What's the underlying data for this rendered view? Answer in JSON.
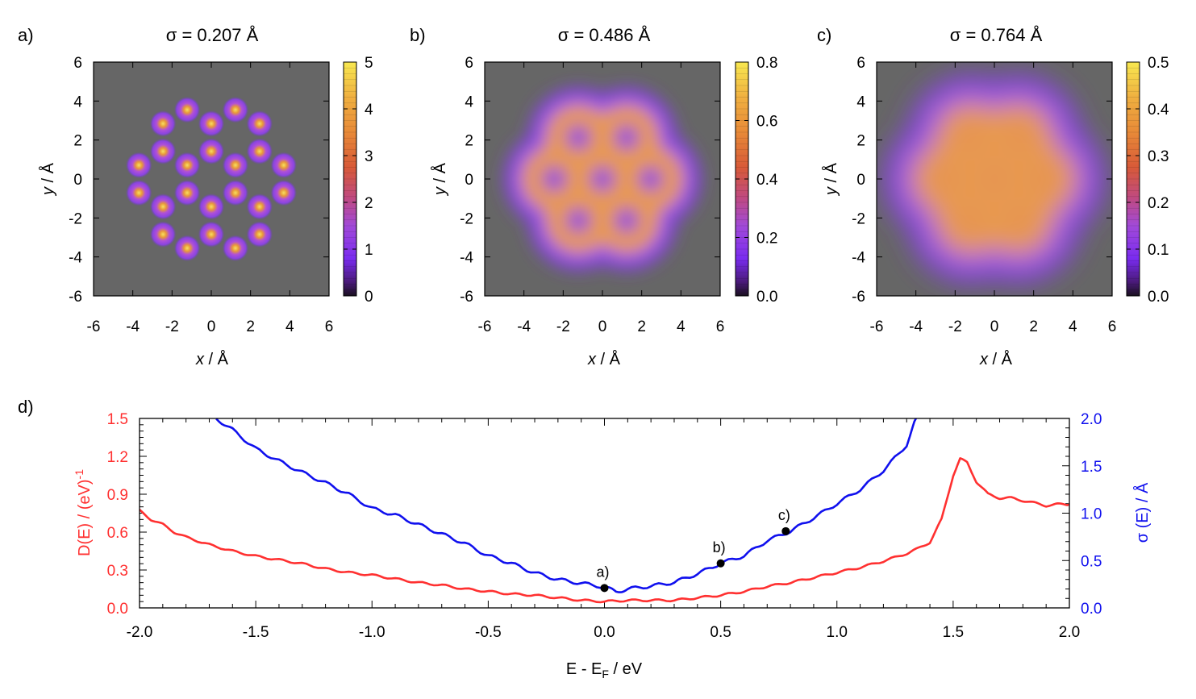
{
  "chart_data": [
    {
      "type": "heatmap",
      "panel_label": "a)",
      "title": "σ = 0.207 Å",
      "xlabel_italic": "x",
      "xlabel_rest": " / Å",
      "ylabel_italic": "y",
      "ylabel_rest": " / Å",
      "xlim": [
        -6,
        6
      ],
      "ylim": [
        -6,
        6
      ],
      "xticks": [
        -6,
        -4,
        -2,
        0,
        2,
        4,
        6
      ],
      "yticks": [
        -6,
        -4,
        -2,
        0,
        2,
        4,
        6
      ],
      "sigma": 0.207,
      "colorbar": {
        "range": [
          0,
          5
        ],
        "ticks": [
          "0",
          "1",
          "2",
          "3",
          "4",
          "5"
        ],
        "tick_values": [
          0,
          1,
          2,
          3,
          4,
          5
        ]
      }
    },
    {
      "type": "heatmap",
      "panel_label": "b)",
      "title": "σ = 0.486 Å",
      "xlabel_italic": "x",
      "xlabel_rest": " / Å",
      "ylabel_italic": "y",
      "ylabel_rest": " / Å",
      "xlim": [
        -6,
        6
      ],
      "ylim": [
        -6,
        6
      ],
      "xticks": [
        -6,
        -4,
        -2,
        0,
        2,
        4,
        6
      ],
      "yticks": [
        -6,
        -4,
        -2,
        0,
        2,
        4,
        6
      ],
      "sigma": 0.486,
      "colorbar": {
        "range": [
          0,
          0.8
        ],
        "ticks": [
          "0.0",
          "0.2",
          "0.4",
          "0.6",
          "0.8"
        ],
        "tick_values": [
          0,
          0.2,
          0.4,
          0.6,
          0.8
        ]
      }
    },
    {
      "type": "heatmap",
      "panel_label": "c)",
      "title": "σ = 0.764 Å",
      "xlabel_italic": "x",
      "xlabel_rest": " / Å",
      "ylabel_italic": "y",
      "ylabel_rest": " / Å",
      "xlim": [
        -6,
        6
      ],
      "ylim": [
        -6,
        6
      ],
      "xticks": [
        -6,
        -4,
        -2,
        0,
        2,
        4,
        6
      ],
      "yticks": [
        -6,
        -4,
        -2,
        0,
        2,
        4,
        6
      ],
      "sigma": 0.764,
      "colorbar": {
        "range": [
          0,
          0.5
        ],
        "ticks": [
          "0.0",
          "0.1",
          "0.2",
          "0.3",
          "0.4",
          "0.5"
        ],
        "tick_values": [
          0,
          0.1,
          0.2,
          0.3,
          0.4,
          0.5
        ]
      }
    },
    {
      "type": "line",
      "panel_label": "d)",
      "xlabel": "E - E",
      "xlabel_sub": "F",
      "xlabel_tail": " / eV",
      "xlim": [
        -2.0,
        2.0
      ],
      "xticks": [
        "-2.0",
        "-1.5",
        "-1.0",
        "-0.5",
        "0.0",
        "0.5",
        "1.0",
        "1.5",
        "2.0"
      ],
      "xtick_values": [
        -2.0,
        -1.5,
        -1.0,
        -0.5,
        0.0,
        0.5,
        1.0,
        1.5,
        2.0
      ],
      "left_axis": {
        "label": "D(E) / (eV)",
        "label_sup": "-1",
        "color": "#ff3030",
        "ylim": [
          0.0,
          1.5
        ],
        "ticks": [
          "0.0",
          "0.3",
          "0.6",
          "0.9",
          "1.2",
          "1.5"
        ],
        "tick_values": [
          0.0,
          0.3,
          0.6,
          0.9,
          1.2,
          1.5
        ]
      },
      "right_axis": {
        "label": "σ (E) / Å",
        "color": "#1010ee",
        "ylim": [
          0.0,
          2.0
        ],
        "ticks": [
          "0.0",
          "0.5",
          "1.0",
          "1.5",
          "2.0"
        ],
        "tick_values": [
          0.0,
          0.5,
          1.0,
          1.5,
          2.0
        ]
      },
      "series": [
        {
          "name": "D(E)",
          "axis": "left",
          "color": "#ff3030",
          "x": [
            -2.0,
            -1.95,
            -1.9,
            -1.85,
            -1.8,
            -1.7,
            -1.6,
            -1.5,
            -1.4,
            -1.3,
            -1.2,
            -1.1,
            -1.0,
            -0.9,
            -0.8,
            -0.7,
            -0.6,
            -0.5,
            -0.4,
            -0.3,
            -0.2,
            -0.1,
            0.0,
            0.1,
            0.2,
            0.3,
            0.4,
            0.5,
            0.6,
            0.7,
            0.8,
            0.9,
            1.0,
            1.1,
            1.2,
            1.3,
            1.35,
            1.4,
            1.45,
            1.5,
            1.53,
            1.56,
            1.6,
            1.65,
            1.7,
            1.75,
            1.8,
            1.85,
            1.9,
            1.95,
            2.0
          ],
          "values": [
            0.77,
            0.7,
            0.66,
            0.6,
            0.56,
            0.5,
            0.45,
            0.41,
            0.38,
            0.35,
            0.31,
            0.28,
            0.26,
            0.23,
            0.2,
            0.18,
            0.15,
            0.13,
            0.11,
            0.1,
            0.08,
            0.06,
            0.05,
            0.06,
            0.06,
            0.06,
            0.08,
            0.1,
            0.13,
            0.17,
            0.2,
            0.24,
            0.28,
            0.32,
            0.37,
            0.43,
            0.47,
            0.52,
            0.7,
            1.05,
            1.18,
            1.15,
            1.0,
            0.9,
            0.87,
            0.87,
            0.85,
            0.83,
            0.81,
            0.82,
            0.82
          ]
        },
        {
          "name": "σ(E)",
          "axis": "right",
          "color": "#1010ee",
          "x": [
            -1.67,
            -1.6,
            -1.5,
            -1.4,
            -1.3,
            -1.2,
            -1.1,
            -1.0,
            -0.9,
            -0.8,
            -0.7,
            -0.6,
            -0.5,
            -0.4,
            -0.3,
            -0.2,
            -0.1,
            0.0,
            0.05,
            0.1,
            0.2,
            0.3,
            0.4,
            0.5,
            0.6,
            0.7,
            0.8,
            0.9,
            1.0,
            1.1,
            1.2,
            1.3,
            1.34
          ],
          "values": [
            2.0,
            1.88,
            1.68,
            1.55,
            1.43,
            1.32,
            1.2,
            1.05,
            0.98,
            0.88,
            0.78,
            0.68,
            0.55,
            0.47,
            0.37,
            0.3,
            0.26,
            0.22,
            0.17,
            0.2,
            0.23,
            0.27,
            0.36,
            0.47,
            0.55,
            0.71,
            0.81,
            0.95,
            1.1,
            1.25,
            1.45,
            1.72,
            2.0
          ]
        }
      ],
      "markers": [
        {
          "label": "a)",
          "x": 0.0,
          "y": 0.21
        },
        {
          "label": "b)",
          "x": 0.5,
          "y": 0.47
        },
        {
          "label": "c)",
          "x": 0.78,
          "y": 0.81
        }
      ]
    }
  ]
}
